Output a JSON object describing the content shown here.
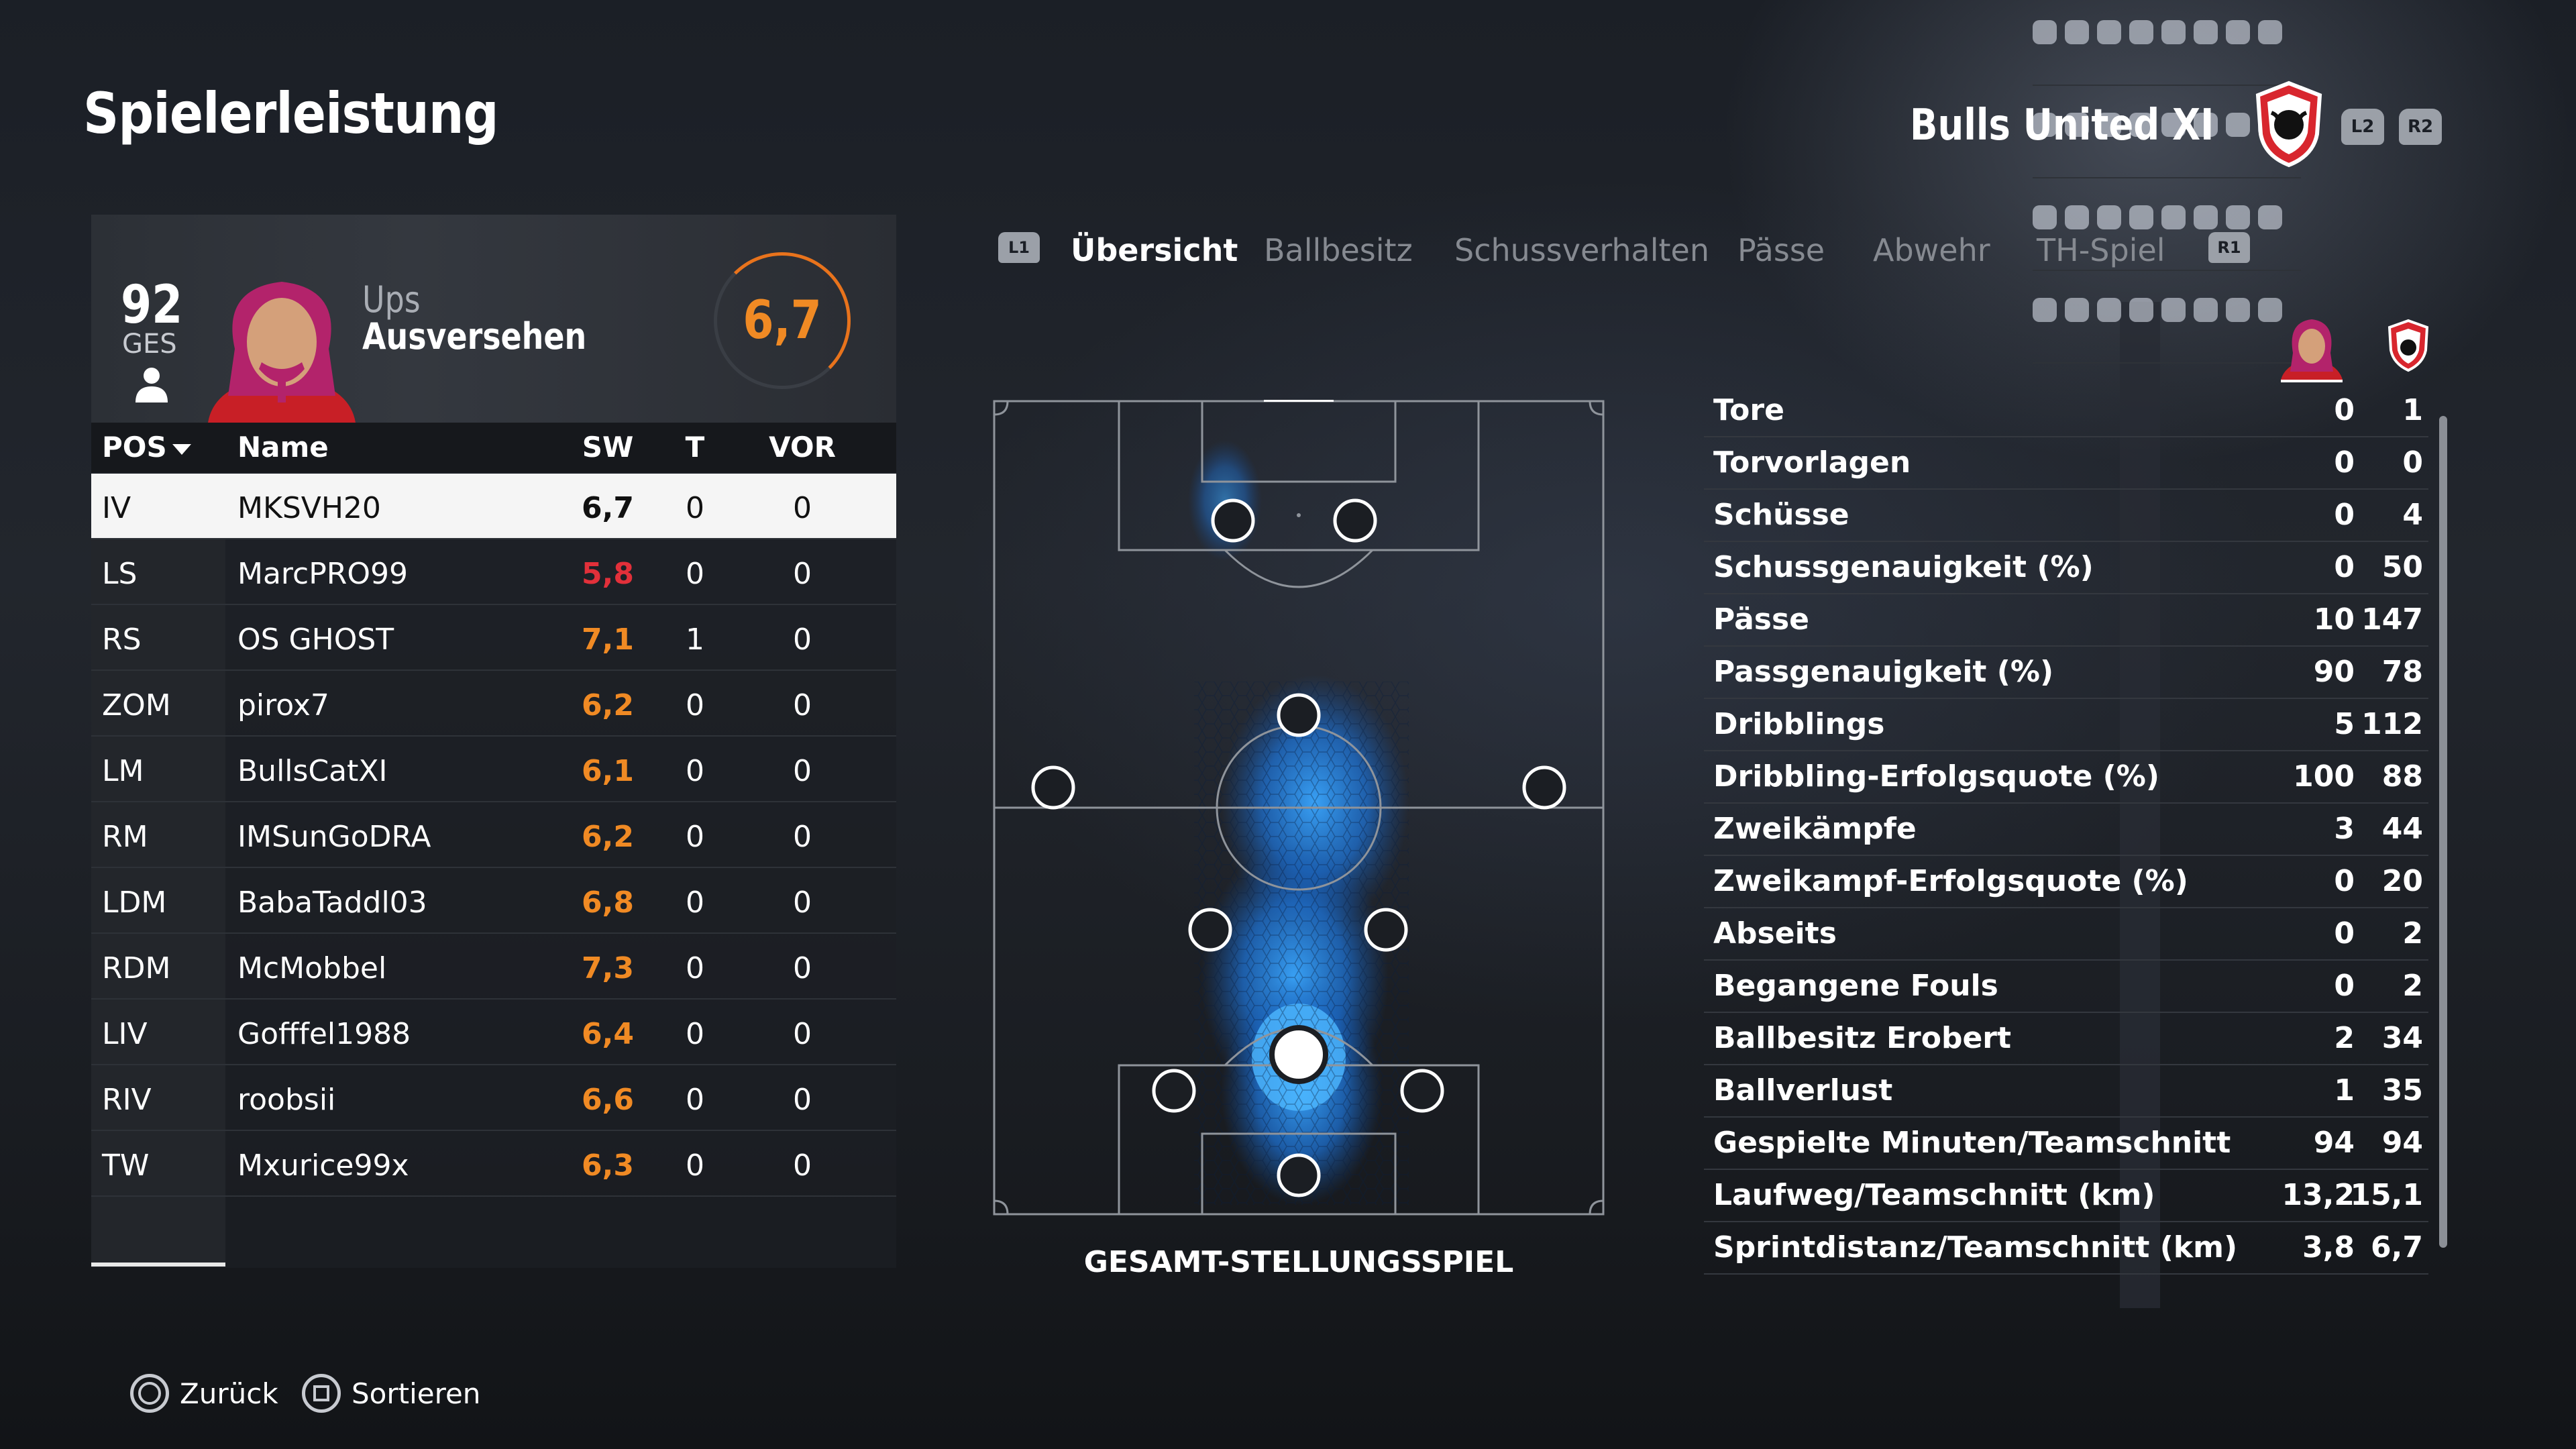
{
  "page": {
    "title": "Spielerleistung"
  },
  "team": {
    "name": "Bulls United XI",
    "crest_icon": "bull-crest-icon",
    "l2": "L2",
    "r2": "R2"
  },
  "player": {
    "ovr_value": "92",
    "ovr_label": "GES",
    "first_name": "Ups",
    "last_name": "Ausversehen",
    "rating": "6,7"
  },
  "table": {
    "headers": {
      "pos": "POS",
      "name": "Name",
      "sw": "SW",
      "t": "T",
      "vor": "VOR"
    },
    "rows": [
      {
        "pos": "IV",
        "name": "MKSVH20",
        "sw": "6,7",
        "t": "0",
        "vor": "0",
        "selected": true,
        "rating_color": "#111111"
      },
      {
        "pos": "LS",
        "name": "MarcPRO99",
        "sw": "5,8",
        "t": "0",
        "vor": "0",
        "rating_color": "#e2303a"
      },
      {
        "pos": "RS",
        "name": "OS GHOST",
        "sw": "7,1",
        "t": "1",
        "vor": "0",
        "rating_color": "#f08a24"
      },
      {
        "pos": "ZOM",
        "name": "pirox7",
        "sw": "6,2",
        "t": "0",
        "vor": "0",
        "rating_color": "#f08a24"
      },
      {
        "pos": "LM",
        "name": "BullsCatXI",
        "sw": "6,1",
        "t": "0",
        "vor": "0",
        "rating_color": "#f08a24"
      },
      {
        "pos": "RM",
        "name": "IMSunGoDRA",
        "sw": "6,2",
        "t": "0",
        "vor": "0",
        "rating_color": "#f08a24"
      },
      {
        "pos": "LDM",
        "name": "BabaTaddl03",
        "sw": "6,8",
        "t": "0",
        "vor": "0",
        "rating_color": "#f08a24"
      },
      {
        "pos": "RDM",
        "name": "McMobbel",
        "sw": "7,3",
        "t": "0",
        "vor": "0",
        "rating_color": "#f08a24"
      },
      {
        "pos": "LIV",
        "name": "Gofffel1988",
        "sw": "6,4",
        "t": "0",
        "vor": "0",
        "rating_color": "#f08a24"
      },
      {
        "pos": "RIV",
        "name": "roobsii",
        "sw": "6,6",
        "t": "0",
        "vor": "0",
        "rating_color": "#f08a24"
      },
      {
        "pos": "TW",
        "name": "Mxurice99x",
        "sw": "6,3",
        "t": "0",
        "vor": "0",
        "rating_color": "#f08a24"
      }
    ]
  },
  "tabs": {
    "l1": "L1",
    "r1": "R1",
    "items": [
      {
        "label": "Übersicht",
        "active": true
      },
      {
        "label": "Ballbesitz"
      },
      {
        "label": "Schussverhalten"
      },
      {
        "label": "Pässe"
      },
      {
        "label": "Abwehr"
      },
      {
        "label": "TH-Spiel"
      }
    ]
  },
  "pitch": {
    "caption": "GESAMT-STELLUNGSSPIEL",
    "heat_color": "#1e90ff",
    "line_color": "#8f949b"
  },
  "stats": [
    {
      "label": "Tore",
      "player": "0",
      "team": "1"
    },
    {
      "label": "Torvorlagen",
      "player": "0",
      "team": "0"
    },
    {
      "label": "Schüsse",
      "player": "0",
      "team": "4"
    },
    {
      "label": "Schussgenauigkeit (%)",
      "player": "0",
      "team": "50"
    },
    {
      "label": "Pässe",
      "player": "10",
      "team": "147"
    },
    {
      "label": "Passgenauigkeit (%)",
      "player": "90",
      "team": "78"
    },
    {
      "label": "Dribblings",
      "player": "5",
      "team": "112"
    },
    {
      "label": "Dribbling-Erfolgsquote (%)",
      "player": "100",
      "team": "88"
    },
    {
      "label": "Zweikämpfe",
      "player": "3",
      "team": "44"
    },
    {
      "label": "Zweikampf-Erfolgsquote (%)",
      "player": "0",
      "team": "20"
    },
    {
      "label": "Abseits",
      "player": "0",
      "team": "2"
    },
    {
      "label": "Begangene Fouls",
      "player": "0",
      "team": "2"
    },
    {
      "label": "Ballbesitz Erobert",
      "player": "2",
      "team": "34"
    },
    {
      "label": "Ballverlust",
      "player": "1",
      "team": "35"
    },
    {
      "label": "Gespielte Minuten/Teamschnitt",
      "player": "94",
      "team": "94"
    },
    {
      "label": "Laufweg/Teamschnitt (km)",
      "player": "13,2",
      "team": "15,1"
    },
    {
      "label": "Sprintdistanz/Teamschnitt (km)",
      "player": "3,8",
      "team": "6,7"
    }
  ],
  "footer": {
    "back": "Zurück",
    "sort": "Sortieren"
  },
  "colors": {
    "accent_orange": "#f08a24",
    "low_rating_red": "#e2303a",
    "team_red": "#d8262e"
  }
}
